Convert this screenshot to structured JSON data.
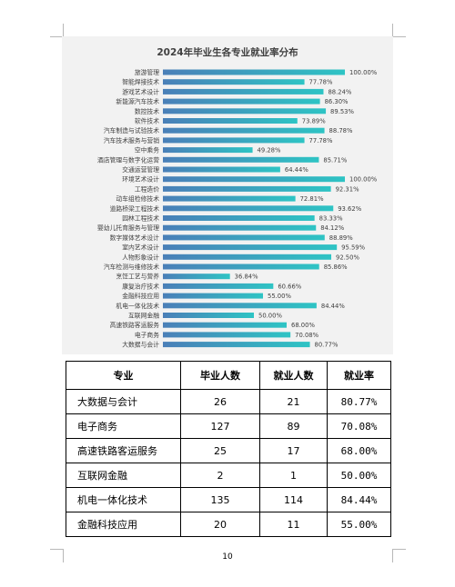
{
  "chart_data": {
    "type": "bar",
    "orientation": "horizontal",
    "title": "2024年毕业生各专业就业率分布",
    "categories": [
      "旅游管理",
      "智能焊接技术",
      "游戏艺术设计",
      "新能源汽车技术",
      "数控技术",
      "软件技术",
      "汽车制造与试验技术",
      "汽车技术服务与营销",
      "空中乘务",
      "酒店管理与数字化运营",
      "交通运营管理",
      "环境艺术设计",
      "工程造价",
      "动车组检修技术",
      "道路桥梁工程技术",
      "园林工程技术",
      "婴幼儿托育服务与管理",
      "数字媒体艺术设计",
      "室内艺术设计",
      "人物形象设计",
      "汽车检测与维修技术",
      "烹饪工艺与营养",
      "康复治疗技术",
      "金融科技应用",
      "机电一体化技术",
      "互联网金融",
      "高速铁路客运服务",
      "电子商务",
      "大数据与会计"
    ],
    "values": [
      100.0,
      77.78,
      88.24,
      86.3,
      89.53,
      73.89,
      88.78,
      77.78,
      49.28,
      85.71,
      64.44,
      100.0,
      92.31,
      72.81,
      93.62,
      83.33,
      84.12,
      88.89,
      95.59,
      92.5,
      85.86,
      36.84,
      60.66,
      55.0,
      84.44,
      50.0,
      68.0,
      70.08,
      80.77
    ],
    "labels": [
      "100.00%",
      "77.78%",
      "88.24%",
      "86.30%",
      "89.53%",
      "73.89%",
      "88.78%",
      "77.78%",
      "49.28%",
      "85.71%",
      "64.44%",
      "100.00%",
      "92.31%",
      "72.81%",
      "93.62%",
      "83.33%",
      "84.12%",
      "88.89%",
      "95.59%",
      "92.50%",
      "85.86%",
      "36.84%",
      "60.66%",
      "55.00%",
      "84.44%",
      "50.00%",
      "68.00%",
      "70.08%",
      "80.77%"
    ],
    "xlim": [
      0,
      100
    ],
    "grid": false,
    "bar_color_start": "#4a7fb8",
    "bar_color_end": "#2ec4c4"
  },
  "table": {
    "headers": [
      "专业",
      "毕业人数",
      "就业人数",
      "就业率"
    ],
    "rows": [
      [
        "大数据与会计",
        "26",
        "21",
        "80.77%"
      ],
      [
        "电子商务",
        "127",
        "89",
        "70.08%"
      ],
      [
        "高速铁路客运服务",
        "25",
        "17",
        "68.00%"
      ],
      [
        "互联网金融",
        "2",
        "1",
        "50.00%"
      ],
      [
        "机电一体化技术",
        "135",
        "114",
        "84.44%"
      ],
      [
        "金融科技应用",
        "20",
        "11",
        "55.00%"
      ]
    ]
  },
  "page_number": "10"
}
